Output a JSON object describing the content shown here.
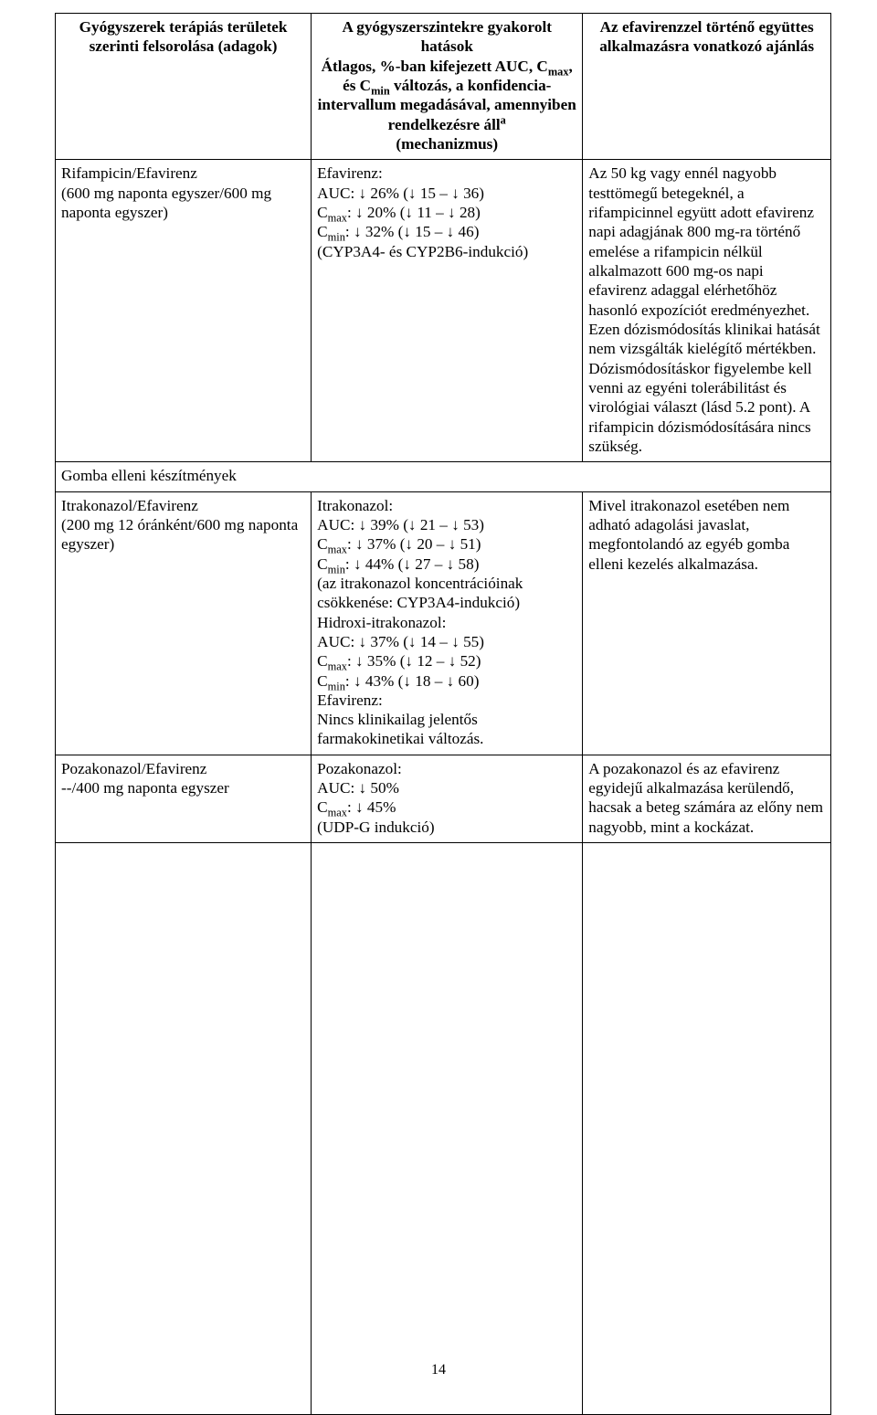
{
  "header": {
    "col1": "Gyógyszerek terápiás területek szerinti felsorolása (adagok)",
    "col2_html": "A gyógyszerszintekre gyakorolt hatások<br>Átlagos, %-ban kifejezett AUC, C<sub>max</sub>, és C<sub>min</sub> változás, a konfidencia-intervallum megadásával, amennyiben rendelkezésre áll<sup>a</sup><br>(mechanizmus)",
    "col3": "Az efavirenzzel történő együttes alkalmazásra vonatkozó ajánlás"
  },
  "rows": [
    {
      "c1": "Rifampicin/Efavirenz<br>(600&nbsp;mg naponta egyszer/600&nbsp;mg naponta egyszer)",
      "c2": "Efavirenz:<br>AUC: ↓ 26% (↓ 15 – ↓ 36)<br>C<sub>max</sub>: ↓ 20% (↓ 11 – ↓ 28)<br>C<sub>min</sub>: ↓ 32% (↓ 15 – ↓ 46)<br>(CYP3A4- és CYP2B6-indukció)",
      "c3": "Az 50&nbsp;kg vagy ennél nagyobb testtömegű betegeknél, a rifampicinnel együtt adott efavirenz napi adagjának 800&nbsp;mg-ra történő emelése a rifampicin nélkül alkalmazott 600&nbsp;mg-os napi efavirenz adaggal elérhetőhöz hasonló expozíciót eredményezhet. Ezen dózismódosítás klinikai hatását nem vizsgálták kielégítő mértékben. Dózismódosításkor figyelembe kell venni az egyéni tolerábilitást és virológiai választ (lásd 5.2&nbsp;pont). A rifampicin dózismódosítására nincs szükség."
    }
  ],
  "section": "Gomba elleni készítmények",
  "rows2": [
    {
      "c1": "Itrakonazol/Efavirenz<br>(200&nbsp;mg 12&nbsp;óránként/600&nbsp;mg naponta egyszer)",
      "c2": "Itrakonazol:<br>AUC: ↓ 39% (↓ 21 – ↓ 53)<br>C<sub>max</sub>: ↓ 37% (↓ 20 – ↓ 51)<br>C<sub>min</sub>: ↓ 44% (↓ 27 – ↓ 58)<br>(az itrakonazol koncentrációinak csökkenése: CYP3A4-indukció)<br>Hidroxi-itrakonazol:<br>AUC: ↓ 37% (↓ 14 – ↓ 55)<br>C<sub>max</sub>: ↓ 35% (↓ 12 – ↓ 52)<br>C<sub>min</sub>: ↓ 43% (↓ 18 – ↓ 60)<br>Efavirenz:<br>Nincs klinikailag jelentős farmakokinetikai változás.",
      "c3": "Mivel itrakonazol esetében nem adható adagolási javaslat, megfontolandó az egyéb gomba elleni kezelés alkalmazása."
    },
    {
      "c1": "Pozakonazol/Efavirenz<br>--/400&nbsp;mg naponta egyszer",
      "c2": "Pozakonazol:<br>AUC: ↓ 50%<br>C<sub>max</sub>: ↓ 45%<br>(UDP-G indukció)",
      "c3": "A pozakonazol és az efavirenz egyidejű alkalmazása kerülendő, hacsak a beteg számára az előny nem nagyobb, mint a kockázat."
    }
  ],
  "pagenum": "14"
}
